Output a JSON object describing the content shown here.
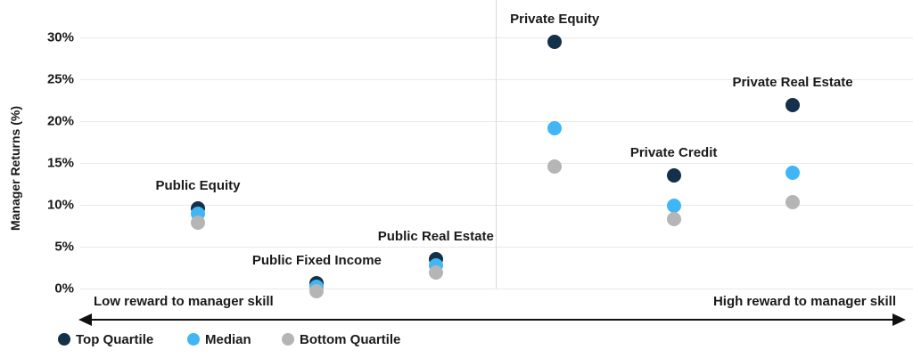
{
  "chart_data": {
    "type": "scatter",
    "title": "",
    "ylabel": "Manager Returns (%)",
    "xlabel": "",
    "ylim": [
      -1,
      32
    ],
    "yticks": [
      30,
      25,
      20,
      15,
      10,
      5,
      0
    ],
    "ytick_format": "{v}%",
    "grid": "horizontal",
    "legend_position": "bottom-left",
    "categories": [
      "Public Equity",
      "Public Fixed Income",
      "Public Real Estate",
      "Private Equity",
      "Private Credit",
      "Private Real Estate"
    ],
    "series": [
      {
        "name": "Top Quartile",
        "color": "#14304a",
        "values": [
          9.6,
          0.6,
          3.5,
          29.5,
          13.5,
          21.9
        ]
      },
      {
        "name": "Median",
        "color": "#41b6f6",
        "values": [
          8.9,
          0.2,
          2.8,
          19.2,
          9.9,
          13.8
        ]
      },
      {
        "name": "Bottom Quartile",
        "color": "#b5b5b5",
        "values": [
          7.9,
          -0.3,
          1.9,
          14.6,
          8.3,
          10.3
        ]
      }
    ],
    "divider_after_category_index": 2,
    "annotations": {
      "left_arrow_label": "Low reward to manager skill",
      "right_arrow_label": "High reward to manager skill"
    },
    "colors": {
      "text": "#1a1a1a",
      "gridline": "#e9e9e9",
      "divider": "#d9d9d9",
      "axis_arrow": "#111111"
    }
  }
}
